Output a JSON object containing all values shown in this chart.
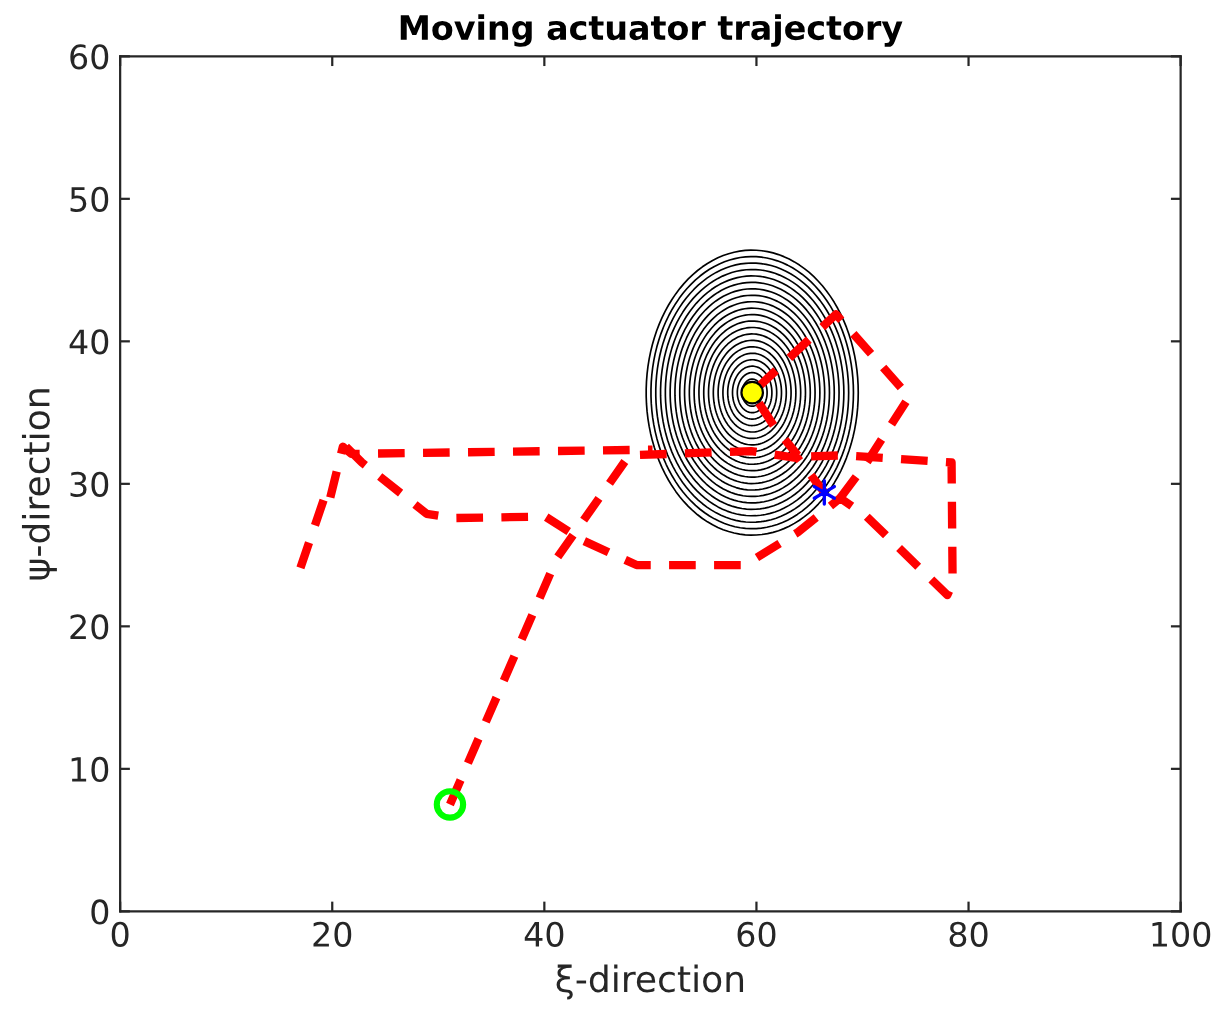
{
  "chart_data": {
    "type": "line",
    "title": "Moving actuator trajectory",
    "xlabel": "ξ-direction",
    "ylabel": "ψ-direction",
    "xlim": [
      0,
      100
    ],
    "ylim": [
      0,
      60
    ],
    "xticks": [
      0,
      20,
      40,
      60,
      80,
      100
    ],
    "yticks": [
      0,
      10,
      20,
      30,
      40,
      50,
      60
    ],
    "grid": false,
    "legend": false,
    "series": [
      {
        "color": "#ff0000",
        "line_style": "dashed",
        "marker": "none",
        "x": [
          31.1,
          41.2,
          48,
          59.5,
          63.9,
          66.4
        ],
        "values": [
          7.5,
          24.8,
          32,
          32.3,
          31.8,
          29.4
        ]
      },
      {
        "color": "#ff0000",
        "line_style": "dashed",
        "marker": "none",
        "x": [
          17,
          19.2,
          19.6,
          21.0,
          21.8,
          50.2
        ],
        "values": [
          24.1,
          28.9,
          28.4,
          32.6,
          32.1,
          32.4
        ]
      },
      {
        "color": "#ff0000",
        "line_style": "dashed",
        "marker": "none",
        "x": [
          21.3,
          22.8,
          28.9,
          31.4,
          40.1,
          43.7,
          48.7,
          58.9,
          63.9,
          67.9,
          70.4,
          78,
          78.5,
          78.4,
          68.2,
          63.9
        ],
        "values": [
          32.6,
          31.5,
          27.9,
          27.6,
          27.7,
          26,
          24.3,
          24.3,
          26.6,
          29,
          27.7,
          22.2,
          23,
          31.5,
          32,
          31.9
        ]
      },
      {
        "color": "#ff0000",
        "line_style": "dashed",
        "marker": "none",
        "x": [
          67.9,
          70.4,
          74.4,
          67.5,
          59.6,
          61.7,
          63.9
        ],
        "values": [
          29,
          31.5,
          36.1,
          41.9,
          36.4,
          34,
          32
        ]
      },
      {
        "type": "scatter",
        "color": "#00ff00",
        "marker": "circle",
        "x": [
          31.1
        ],
        "values": [
          7.5
        ]
      },
      {
        "type": "scatter",
        "color": "#ffff00",
        "marker": "circle",
        "x": [
          59.6
        ],
        "values": [
          36.4
        ]
      },
      {
        "type": "scatter",
        "color": "#0000ff",
        "marker": "cross",
        "x": [
          66.4
        ],
        "values": [
          29.4
        ]
      }
    ]
  }
}
